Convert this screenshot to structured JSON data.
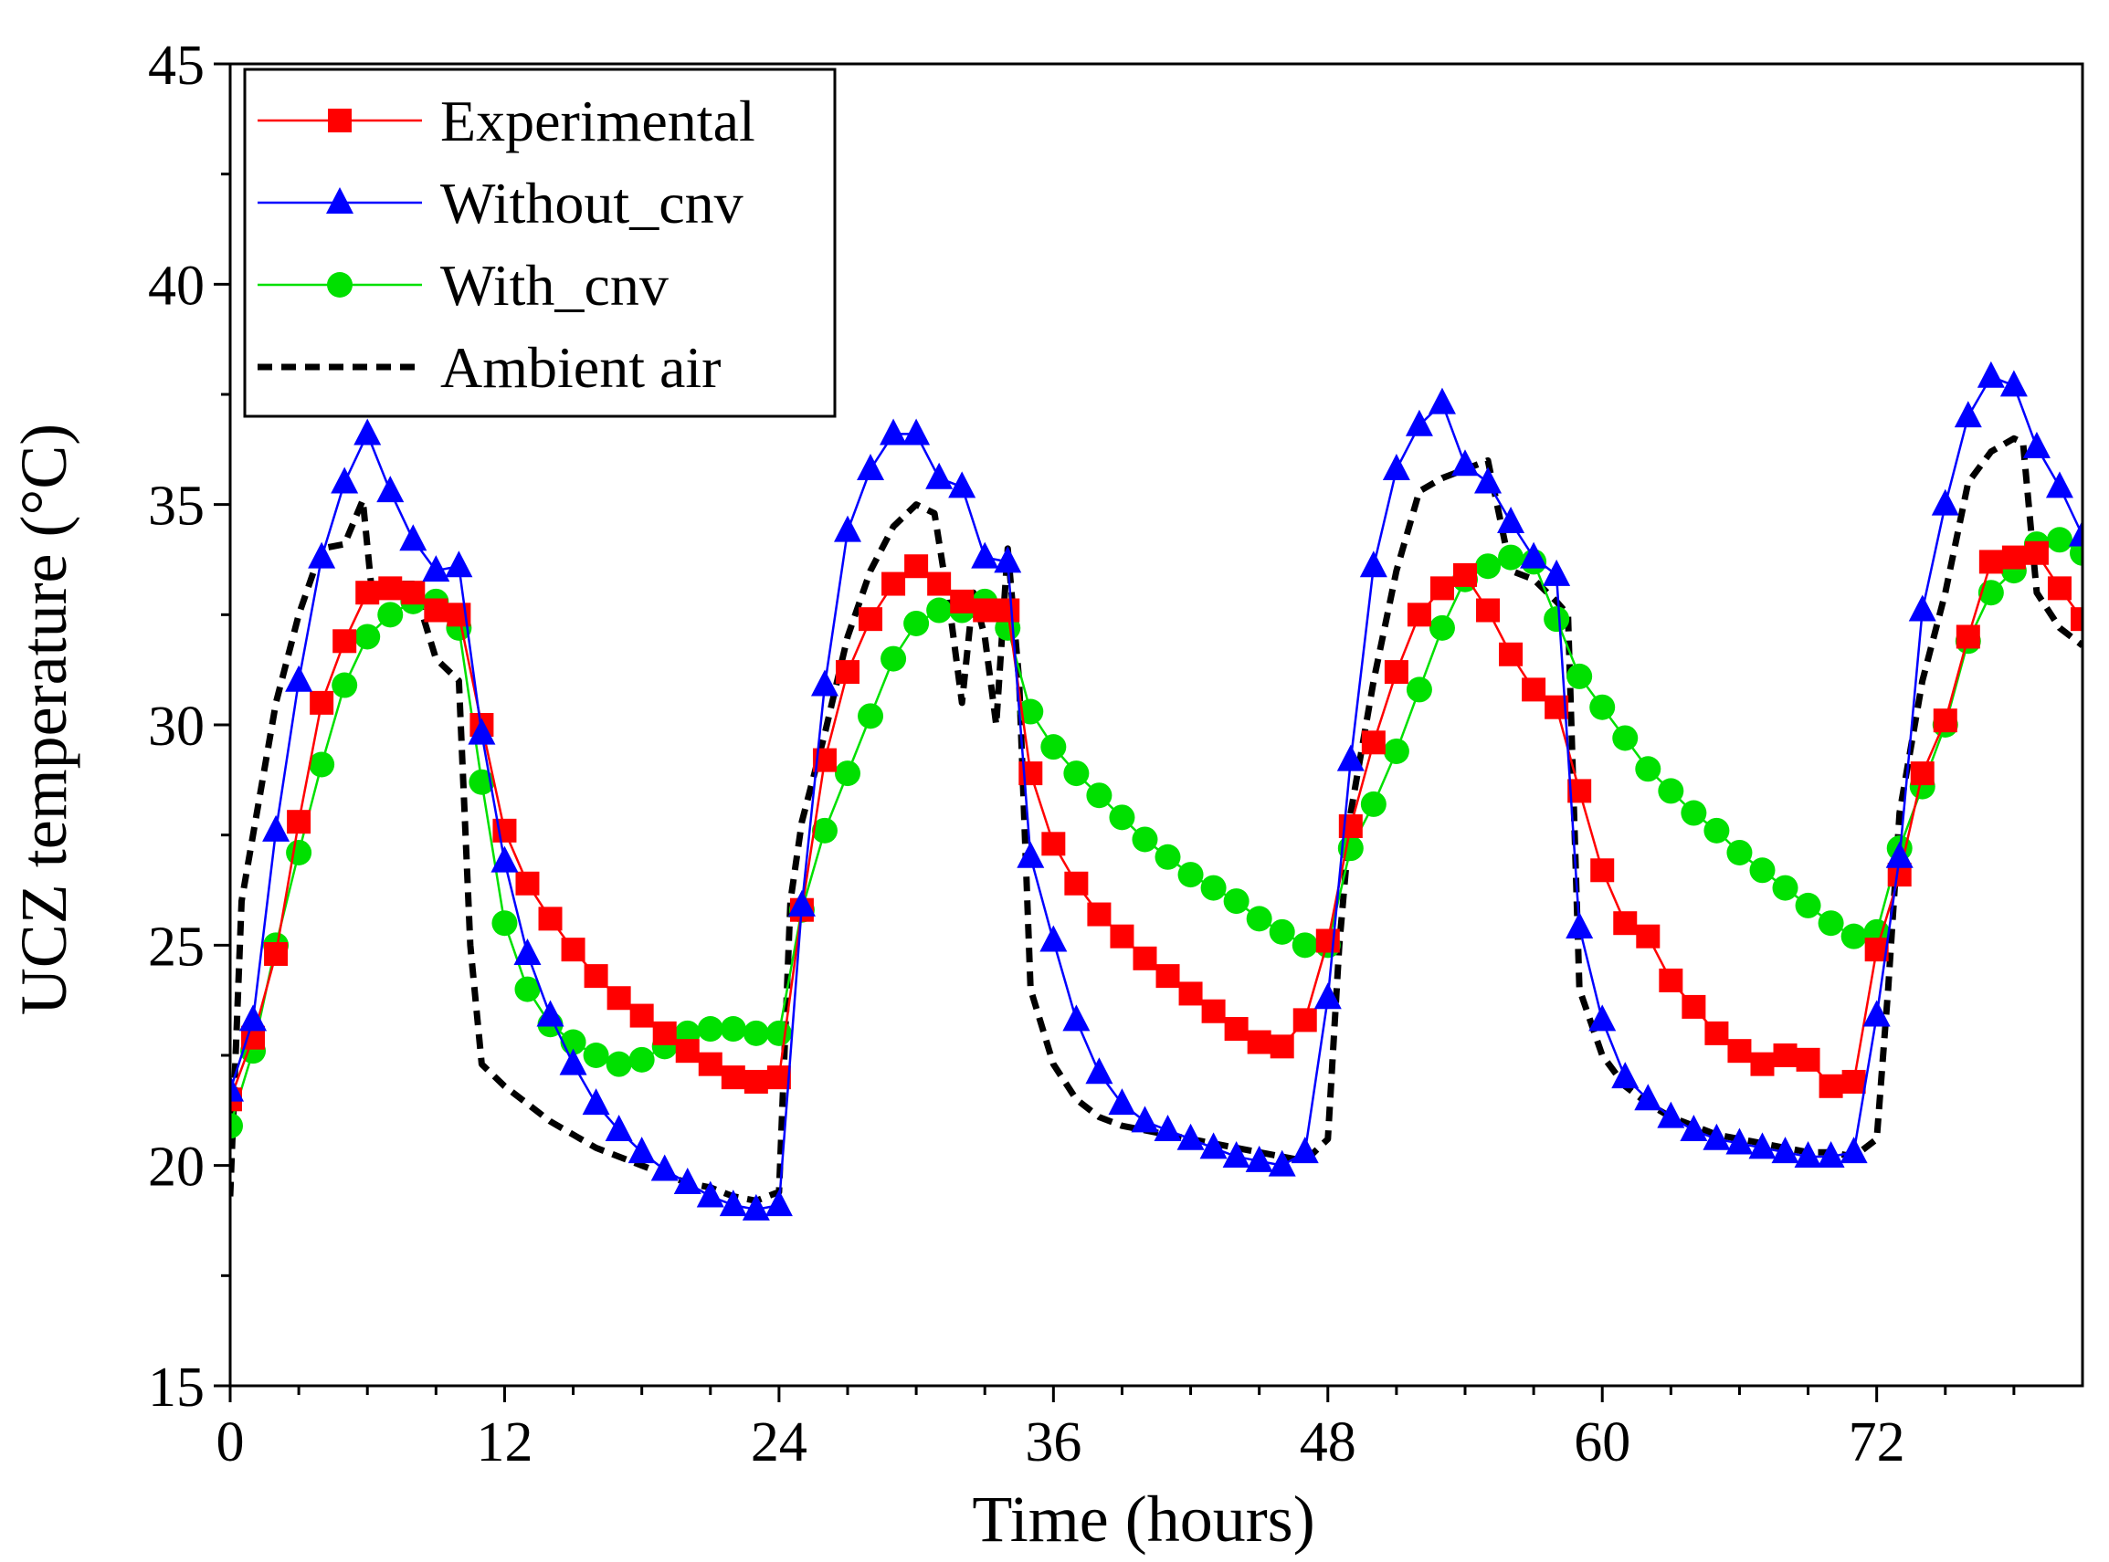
{
  "chart_data": {
    "type": "line",
    "title": "",
    "xlabel": "Time (hours)",
    "ylabel": "UCZ temperature (°C)",
    "xlim": [
      0,
      81
    ],
    "ylim": [
      15,
      45
    ],
    "xticks": [
      0,
      12,
      24,
      36,
      48,
      60,
      72
    ],
    "xtick_labels": [
      "0",
      "12",
      "24",
      "36",
      "48",
      "60",
      "72"
    ],
    "yticks": [
      15,
      20,
      25,
      30,
      35,
      40,
      45
    ],
    "ytick_labels": [
      "15",
      "20",
      "25",
      "30",
      "35",
      "40",
      "45"
    ],
    "grid": false,
    "legend_position": "top-left",
    "series": [
      {
        "name": "Experimental",
        "color": "#ff0000",
        "marker": "square",
        "line_style": "solid",
        "x": [
          0,
          1,
          2,
          3,
          4,
          5,
          6,
          7,
          8,
          9,
          10,
          11,
          12,
          13,
          14,
          15,
          16,
          17,
          18,
          19,
          20,
          21,
          22,
          23,
          24,
          25,
          26,
          27,
          28,
          29,
          30,
          31,
          32,
          33,
          34,
          35,
          36,
          37,
          38,
          39,
          40,
          41,
          42,
          43,
          44,
          45,
          46,
          47,
          48,
          49,
          50,
          51,
          52,
          53,
          54,
          55,
          56,
          57,
          58,
          59,
          60,
          61,
          62,
          63,
          64,
          65,
          66,
          67,
          68,
          69,
          70,
          71,
          72,
          73,
          74,
          75,
          76,
          77,
          78,
          79,
          80,
          81
        ],
        "values": [
          21.5,
          22.9,
          24.8,
          27.8,
          30.5,
          31.9,
          33.0,
          33.1,
          33.0,
          32.6,
          32.5,
          30.0,
          27.6,
          26.4,
          25.6,
          24.9,
          24.3,
          23.8,
          23.4,
          23.0,
          22.6,
          22.3,
          22.0,
          21.9,
          22.0,
          25.8,
          29.2,
          31.2,
          32.4,
          33.2,
          33.6,
          33.2,
          32.8,
          32.6,
          32.6,
          28.9,
          27.3,
          26.4,
          25.7,
          25.2,
          24.7,
          24.3,
          23.9,
          23.5,
          23.1,
          22.8,
          22.7,
          23.3,
          25.1,
          27.7,
          29.6,
          31.2,
          32.5,
          33.1,
          33.4,
          32.6,
          31.6,
          30.8,
          30.4,
          28.5,
          26.7,
          25.5,
          25.2,
          24.2,
          23.6,
          23.0,
          22.6,
          22.3,
          22.5,
          22.4,
          21.8,
          21.9,
          24.9,
          26.6,
          28.9,
          30.1,
          32.0,
          33.7,
          33.8,
          33.9,
          33.1,
          32.4
        ]
      },
      {
        "name": "Without_cnv",
        "color": "#0000ff",
        "marker": "triangle",
        "line_style": "solid",
        "x": [
          0,
          1,
          2,
          3,
          4,
          5,
          6,
          7,
          8,
          9,
          10,
          11,
          12,
          13,
          14,
          15,
          16,
          17,
          18,
          19,
          20,
          21,
          22,
          23,
          24,
          25,
          26,
          27,
          28,
          29,
          30,
          31,
          32,
          33,
          34,
          35,
          36,
          37,
          38,
          39,
          40,
          41,
          42,
          43,
          44,
          45,
          46,
          47,
          48,
          49,
          50,
          51,
          52,
          53,
          54,
          55,
          56,
          57,
          58,
          59,
          60,
          61,
          62,
          63,
          64,
          65,
          66,
          67,
          68,
          69,
          70,
          71,
          72,
          73,
          74,
          75,
          76,
          77,
          78,
          79,
          80,
          81
        ],
        "values": [
          21.7,
          23.3,
          27.6,
          31.0,
          33.8,
          35.5,
          36.6,
          35.3,
          34.2,
          33.5,
          33.6,
          29.8,
          26.9,
          24.8,
          23.4,
          22.3,
          21.4,
          20.8,
          20.3,
          19.9,
          19.6,
          19.3,
          19.1,
          19.0,
          19.1,
          25.9,
          30.9,
          34.4,
          35.8,
          36.6,
          36.6,
          35.6,
          35.4,
          33.8,
          33.7,
          27.0,
          25.1,
          23.3,
          22.1,
          21.4,
          21.0,
          20.8,
          20.6,
          20.4,
          20.2,
          20.1,
          20.0,
          20.3,
          23.8,
          29.2,
          33.6,
          35.8,
          36.8,
          37.3,
          35.9,
          35.5,
          34.6,
          33.8,
          33.4,
          25.4,
          23.3,
          22.0,
          21.5,
          21.1,
          20.8,
          20.6,
          20.5,
          20.4,
          20.3,
          20.2,
          20.2,
          20.3,
          23.4,
          27.0,
          32.6,
          35.0,
          37.0,
          37.9,
          37.7,
          36.3,
          35.4,
          34.3
        ]
      },
      {
        "name": "With_cnv",
        "color": "#00e000",
        "marker": "circle",
        "line_style": "solid",
        "x": [
          0,
          1,
          2,
          3,
          4,
          5,
          6,
          7,
          8,
          9,
          10,
          11,
          12,
          13,
          14,
          15,
          16,
          17,
          18,
          19,
          20,
          21,
          22,
          23,
          24,
          25,
          26,
          27,
          28,
          29,
          30,
          31,
          32,
          33,
          34,
          35,
          36,
          37,
          38,
          39,
          40,
          41,
          42,
          43,
          44,
          45,
          46,
          47,
          48,
          49,
          50,
          51,
          52,
          53,
          54,
          55,
          56,
          57,
          58,
          59,
          60,
          61,
          62,
          63,
          64,
          65,
          66,
          67,
          68,
          69,
          70,
          71,
          72,
          73,
          74,
          75,
          76,
          77,
          78,
          79,
          80,
          81
        ],
        "values": [
          20.9,
          22.6,
          25.0,
          27.1,
          29.1,
          30.9,
          32.0,
          32.5,
          32.8,
          32.8,
          32.2,
          28.7,
          25.5,
          24.0,
          23.2,
          22.8,
          22.5,
          22.3,
          22.4,
          22.7,
          23.0,
          23.1,
          23.1,
          23.0,
          23.0,
          25.8,
          27.6,
          28.9,
          30.2,
          31.5,
          32.3,
          32.6,
          32.6,
          32.8,
          32.2,
          30.3,
          29.5,
          28.9,
          28.4,
          27.9,
          27.4,
          27.0,
          26.6,
          26.3,
          26.0,
          25.6,
          25.3,
          25.0,
          25.0,
          27.2,
          28.2,
          29.4,
          30.8,
          32.2,
          33.3,
          33.6,
          33.8,
          33.7,
          32.4,
          31.1,
          30.4,
          29.7,
          29.0,
          28.5,
          28.0,
          27.6,
          27.1,
          26.7,
          26.3,
          25.9,
          25.5,
          25.2,
          25.3,
          27.2,
          28.6,
          30.0,
          31.9,
          33.0,
          33.5,
          34.1,
          34.2,
          33.9
        ]
      },
      {
        "name": "Ambient air",
        "color": "#000000",
        "marker": "none",
        "line_style": "dashed",
        "x": [
          0,
          0.5,
          1,
          2,
          3,
          4,
          5,
          5.8,
          6.2,
          7,
          8,
          9,
          10,
          10.5,
          11,
          12,
          13,
          14,
          15,
          16,
          17,
          18,
          19,
          20,
          21,
          22,
          23,
          24,
          24.5,
          25,
          26,
          27,
          28,
          29,
          30,
          30.8,
          31.5,
          32,
          32.5,
          33,
          33.5,
          34,
          34.5,
          35,
          36,
          37,
          38,
          39,
          40,
          41,
          42,
          43,
          44,
          45,
          46,
          47,
          48,
          48.5,
          49,
          50,
          51,
          52,
          53,
          54,
          55,
          56,
          57,
          58,
          58.5,
          59,
          60,
          61,
          62,
          63,
          64,
          65,
          66,
          67,
          68,
          69,
          70,
          71,
          72,
          72.5,
          73,
          74,
          75,
          76,
          77,
          78,
          78.4,
          79,
          80,
          81
        ],
        "values": [
          19.3,
          26.0,
          27.5,
          30.5,
          32.5,
          34.0,
          34.1,
          35.1,
          33.0,
          33.2,
          33.2,
          31.5,
          31.0,
          25.0,
          22.3,
          21.8,
          21.4,
          21.0,
          20.7,
          20.4,
          20.2,
          20.0,
          19.8,
          19.6,
          19.5,
          19.3,
          19.2,
          19.4,
          26.0,
          27.8,
          29.8,
          32.0,
          33.5,
          34.5,
          35.0,
          34.8,
          32.5,
          30.5,
          33.0,
          32.0,
          30.0,
          34.0,
          31.0,
          24.0,
          22.3,
          21.5,
          21.1,
          20.9,
          20.8,
          20.7,
          20.6,
          20.5,
          20.4,
          20.3,
          20.2,
          20.1,
          20.6,
          25.0,
          28.0,
          31.0,
          33.5,
          35.3,
          35.6,
          35.8,
          36.0,
          33.5,
          33.3,
          32.8,
          32.5,
          24.0,
          22.5,
          21.8,
          21.4,
          21.1,
          20.9,
          20.7,
          20.6,
          20.5,
          20.4,
          20.3,
          20.3,
          20.2,
          20.6,
          24.0,
          28.0,
          31.0,
          33.0,
          35.5,
          36.2,
          36.5,
          36.4,
          33.0,
          32.2,
          31.8
        ]
      }
    ]
  }
}
